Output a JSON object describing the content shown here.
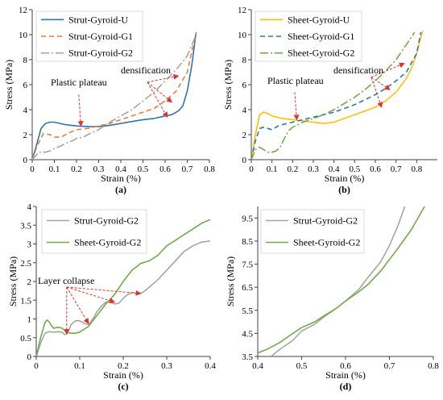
{
  "chart_data": [
    {
      "type": "line",
      "panel_label": "(a)",
      "xlabel": "Strain (%)",
      "ylabel": "Stress (MPa)",
      "xlim": [
        0,
        0.8
      ],
      "ylim": [
        0,
        12
      ],
      "xticks": [
        "0",
        "0.1",
        "0.2",
        "0.3",
        "0.4",
        "0.5",
        "0.6",
        "0.7",
        "0.8"
      ],
      "yticks": [
        "0",
        "2",
        "4",
        "6",
        "8",
        "10",
        "12"
      ],
      "legend_position": "top-left",
      "annotations": [
        "densification",
        "Plastic plateau"
      ],
      "series": [
        {
          "name": "Strut-Gyroid-U",
          "color": "#2e75b6",
          "dash": "solid",
          "x": [
            0,
            0.02,
            0.04,
            0.06,
            0.08,
            0.1,
            0.15,
            0.2,
            0.25,
            0.3,
            0.35,
            0.4,
            0.45,
            0.5,
            0.55,
            0.6,
            0.63,
            0.66,
            0.68,
            0.7,
            0.72,
            0.74
          ],
          "y": [
            0,
            1.2,
            2.5,
            2.9,
            3.0,
            3.0,
            2.8,
            2.7,
            2.65,
            2.65,
            2.75,
            2.9,
            3.05,
            3.2,
            3.3,
            3.5,
            3.6,
            3.9,
            4.3,
            5.5,
            7.5,
            10.2
          ]
        },
        {
          "name": "Strut-Gyroid-G1",
          "color": "#ed7d31",
          "dash": "6,4",
          "x": [
            0,
            0.02,
            0.05,
            0.08,
            0.1,
            0.13,
            0.16,
            0.2,
            0.25,
            0.3,
            0.35,
            0.4,
            0.45,
            0.5,
            0.55,
            0.6,
            0.65,
            0.7,
            0.74
          ],
          "y": [
            0,
            1.0,
            2.1,
            2.0,
            1.8,
            1.8,
            2.1,
            2.4,
            2.5,
            2.7,
            2.9,
            3.2,
            3.5,
            3.8,
            4.1,
            4.7,
            5.5,
            7.0,
            10.2
          ]
        },
        {
          "name": "Strut-Gyroid-G2",
          "color": "#a5a5a5",
          "dash": "10,3,2,3",
          "x": [
            0,
            0.03,
            0.06,
            0.08,
            0.1,
            0.13,
            0.15,
            0.18,
            0.2,
            0.23,
            0.25,
            0.3,
            0.35,
            0.4,
            0.45,
            0.5,
            0.55,
            0.6,
            0.65,
            0.7,
            0.74
          ],
          "y": [
            0,
            0.6,
            0.6,
            0.7,
            0.9,
            1.1,
            1.3,
            1.5,
            1.7,
            1.8,
            2.0,
            2.4,
            3.0,
            3.5,
            4.0,
            4.7,
            5.4,
            6.3,
            7.2,
            8.3,
            10.0
          ]
        }
      ]
    },
    {
      "type": "line",
      "panel_label": "(b)",
      "xlabel": "Strain (%)",
      "ylabel": "Stress (MPa)",
      "xlim": [
        0,
        0.9
      ],
      "ylim": [
        0,
        12
      ],
      "xticks": [
        "0",
        "0.1",
        "0.2",
        "0.3",
        "0.4",
        "0.5",
        "0.6",
        "0.7",
        "0.8"
      ],
      "yticks": [
        "0",
        "2",
        "4",
        "6",
        "8",
        "10",
        "12"
      ],
      "legend_position": "top-left",
      "annotations": [
        "densification",
        "Plastic plateau"
      ],
      "series": [
        {
          "name": "Sheet-Gyroid-U",
          "color": "#ffc000",
          "dash": "solid",
          "x": [
            0,
            0.02,
            0.04,
            0.06,
            0.08,
            0.1,
            0.15,
            0.2,
            0.25,
            0.3,
            0.35,
            0.4,
            0.45,
            0.5,
            0.55,
            0.6,
            0.65,
            0.7,
            0.75,
            0.78,
            0.8,
            0.82,
            0.83
          ],
          "y": [
            0,
            2.0,
            3.6,
            3.8,
            3.7,
            3.5,
            3.3,
            3.2,
            3.1,
            3.0,
            2.9,
            3.0,
            3.3,
            3.6,
            3.9,
            4.2,
            4.7,
            5.4,
            6.5,
            7.5,
            8.5,
            9.8,
            10.3
          ]
        },
        {
          "name": "Sheet-Gyroid-G1",
          "color": "#2e75b6",
          "dash": "6,4",
          "x": [
            0,
            0.02,
            0.04,
            0.06,
            0.08,
            0.1,
            0.13,
            0.15,
            0.2,
            0.25,
            0.3,
            0.35,
            0.4,
            0.45,
            0.5,
            0.55,
            0.6,
            0.65,
            0.7,
            0.75,
            0.8,
            0.82
          ],
          "y": [
            0,
            1.5,
            2.5,
            2.6,
            2.5,
            2.4,
            2.7,
            2.8,
            3.0,
            3.2,
            3.4,
            3.6,
            3.8,
            4.1,
            4.4,
            4.8,
            5.2,
            5.7,
            6.3,
            7.0,
            8.5,
            10.2
          ]
        },
        {
          "name": "Sheet-Gyroid-G2",
          "color": "#70ad47",
          "dash": "10,3,2,3",
          "x": [
            0,
            0.02,
            0.04,
            0.06,
            0.08,
            0.1,
            0.12,
            0.14,
            0.16,
            0.18,
            0.2,
            0.25,
            0.3,
            0.35,
            0.4,
            0.45,
            0.5,
            0.55,
            0.6,
            0.65,
            0.7,
            0.75,
            0.79
          ],
          "y": [
            0,
            0.8,
            1.0,
            0.8,
            0.6,
            0.6,
            0.7,
            1.0,
            1.7,
            2.3,
            2.6,
            3.0,
            3.3,
            3.6,
            4.0,
            4.5,
            5.0,
            5.6,
            6.3,
            7.1,
            8.0,
            9.2,
            10.2
          ]
        }
      ]
    },
    {
      "type": "line",
      "panel_label": "(c)",
      "xlabel": "Strain (%)",
      "ylabel": "Stress (MPa)",
      "xlim": [
        0,
        0.4
      ],
      "ylim": [
        0,
        4
      ],
      "xticks": [
        "0",
        "0.1",
        "0.2",
        "0.3",
        "0.4"
      ],
      "yticks": [
        "0",
        "0.5",
        "1",
        "1.5",
        "2",
        "2.5",
        "3",
        "3.5",
        "4"
      ],
      "legend_position": "top-left",
      "annotations": [
        "Layer collapse"
      ],
      "series": [
        {
          "name": "Strut-Gyroid-G2",
          "color": "#a5a5a5",
          "dash": "solid",
          "x": [
            0,
            0.01,
            0.02,
            0.03,
            0.04,
            0.05,
            0.06,
            0.065,
            0.07,
            0.075,
            0.08,
            0.09,
            0.1,
            0.11,
            0.12,
            0.13,
            0.14,
            0.15,
            0.16,
            0.17,
            0.18,
            0.19,
            0.2,
            0.21,
            0.22,
            0.23,
            0.24,
            0.25,
            0.26,
            0.27,
            0.28,
            0.3,
            0.32,
            0.34,
            0.36,
            0.38,
            0.4
          ],
          "y": [
            0,
            0.35,
            0.62,
            0.66,
            0.65,
            0.66,
            0.64,
            0.58,
            0.6,
            0.7,
            0.85,
            0.95,
            0.95,
            0.88,
            0.85,
            1.0,
            1.2,
            1.35,
            1.45,
            1.45,
            1.4,
            1.42,
            1.55,
            1.65,
            1.7,
            1.68,
            1.68,
            1.75,
            1.85,
            1.95,
            2.05,
            2.3,
            2.55,
            2.8,
            2.95,
            3.05,
            3.08
          ]
        },
        {
          "name": "Sheet-Gyroid-G2",
          "color": "#70ad47",
          "dash": "solid",
          "x": [
            0,
            0.01,
            0.02,
            0.025,
            0.03,
            0.035,
            0.04,
            0.05,
            0.06,
            0.07,
            0.08,
            0.09,
            0.1,
            0.12,
            0.14,
            0.16,
            0.18,
            0.2,
            0.22,
            0.24,
            0.26,
            0.28,
            0.3,
            0.32,
            0.34,
            0.36,
            0.38,
            0.4
          ],
          "y": [
            0,
            0.5,
            0.9,
            0.97,
            0.92,
            0.82,
            0.75,
            0.78,
            0.75,
            0.65,
            0.62,
            0.62,
            0.65,
            0.8,
            1.1,
            1.4,
            1.65,
            2.0,
            2.3,
            2.48,
            2.55,
            2.7,
            2.95,
            3.1,
            3.25,
            3.4,
            3.55,
            3.65
          ]
        }
      ]
    },
    {
      "type": "line",
      "panel_label": "(d)",
      "xlabel": "Strain (%)",
      "ylabel": "Stress (MPa)",
      "xlim": [
        0.4,
        0.8
      ],
      "ylim": [
        3.5,
        10
      ],
      "xticks": [
        "0.4",
        "0.5",
        "0.6",
        "0.7",
        "0.8"
      ],
      "yticks": [
        "3.5",
        "4.5",
        "5.5",
        "6.5",
        "7.5",
        "8.5",
        "9.5"
      ],
      "legend_position": "top-left",
      "series": [
        {
          "name": "Strut-Gyroid-G2",
          "color": "#a5a5a5",
          "dash": "solid",
          "x": [
            0.43,
            0.45,
            0.48,
            0.5,
            0.53,
            0.55,
            0.58,
            0.6,
            0.63,
            0.65,
            0.68,
            0.7,
            0.72,
            0.735
          ],
          "y": [
            3.5,
            3.8,
            4.2,
            4.6,
            4.9,
            5.2,
            5.6,
            5.9,
            6.4,
            6.9,
            7.6,
            8.3,
            9.2,
            10.0
          ]
        },
        {
          "name": "Sheet-Gyroid-G2",
          "color": "#70ad47",
          "dash": "solid",
          "x": [
            0.4,
            0.42,
            0.45,
            0.48,
            0.5,
            0.53,
            0.55,
            0.58,
            0.6,
            0.63,
            0.65,
            0.68,
            0.7,
            0.72,
            0.75,
            0.78
          ],
          "y": [
            3.65,
            3.8,
            4.1,
            4.5,
            4.75,
            5.0,
            5.25,
            5.6,
            5.9,
            6.3,
            6.6,
            7.2,
            7.7,
            8.2,
            9.0,
            10.0
          ]
        }
      ]
    }
  ]
}
